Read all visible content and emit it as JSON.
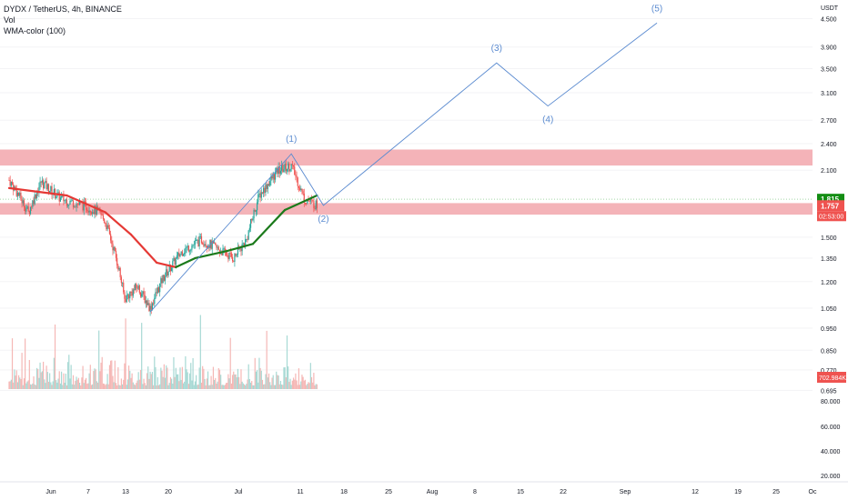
{
  "legend": {
    "symbol": "DYDX / TetherUS, 4h, BINANCE",
    "vol": "Vol",
    "wma": "WMA-color (100)"
  },
  "chart_data": {
    "type": "candlestick",
    "symbol": "DYDX / TetherUS",
    "interval": "4h",
    "exchange": "BINANCE",
    "price_axis_unit": "USDT",
    "price_scale": "log",
    "price_ticks": [
      "4.500",
      "3.900",
      "3.500",
      "3.100",
      "2.700",
      "2.400",
      "2.100",
      "1.500",
      "1.350",
      "1.200",
      "1.050",
      "0.950",
      "0.850",
      "0.770",
      "0.695"
    ],
    "volume_ticks": [
      "80.000",
      "60.000",
      "40.000",
      "20.000"
    ],
    "time_ticks": [
      "Jun",
      "7",
      "13",
      "20",
      "Jul",
      "11",
      "18",
      "25",
      "Aug",
      "8",
      "15",
      "22",
      "Sep",
      "12",
      "19",
      "25",
      "Oc"
    ],
    "price_labels": {
      "bid": "1.815",
      "last": "1.757",
      "countdown": "02:53:00",
      "volume": "702.984K"
    },
    "price_path": [
      {
        "date": "2022-05-27",
        "price": 2.0
      },
      {
        "date": "2022-05-30",
        "price": 1.7
      },
      {
        "date": "2022-06-01",
        "price": 1.98
      },
      {
        "date": "2022-06-04",
        "price": 1.82
      },
      {
        "date": "2022-06-08",
        "price": 1.75
      },
      {
        "date": "2022-06-10",
        "price": 1.7
      },
      {
        "date": "2022-06-11",
        "price": 1.62
      },
      {
        "date": "2022-06-13",
        "price": 1.3
      },
      {
        "date": "2022-06-14",
        "price": 1.1
      },
      {
        "date": "2022-06-16",
        "price": 1.17
      },
      {
        "date": "2022-06-18",
        "price": 1.05
      },
      {
        "date": "2022-06-20",
        "price": 1.22
      },
      {
        "date": "2022-06-23",
        "price": 1.4
      },
      {
        "date": "2022-06-26",
        "price": 1.48
      },
      {
        "date": "2022-06-29",
        "price": 1.4
      },
      {
        "date": "2022-07-01",
        "price": 1.35
      },
      {
        "date": "2022-07-03",
        "price": 1.48
      },
      {
        "date": "2022-07-05",
        "price": 1.85
      },
      {
        "date": "2022-07-08",
        "price": 2.1
      },
      {
        "date": "2022-07-10",
        "price": 2.15
      },
      {
        "date": "2022-07-12",
        "price": 1.82
      },
      {
        "date": "2022-07-14",
        "price": 1.76
      }
    ],
    "wma": [
      {
        "date": "2022-05-27",
        "price": 1.92,
        "color": "#e53935"
      },
      {
        "date": "2022-06-05",
        "price": 1.85,
        "color": "#e53935"
      },
      {
        "date": "2022-06-11",
        "price": 1.7,
        "color": "#e53935"
      },
      {
        "date": "2022-06-15",
        "price": 1.52,
        "color": "#e53935"
      },
      {
        "date": "2022-06-19",
        "price": 1.32,
        "color": "#e53935"
      },
      {
        "date": "2022-06-22",
        "price": 1.29,
        "color": "#e53935"
      },
      {
        "date": "2022-06-25",
        "price": 1.35,
        "color": "#1b7a1b"
      },
      {
        "date": "2022-06-30",
        "price": 1.4,
        "color": "#1b7a1b"
      },
      {
        "date": "2022-07-04",
        "price": 1.45,
        "color": "#1b7a1b"
      },
      {
        "date": "2022-07-09",
        "price": 1.72,
        "color": "#1b7a1b"
      },
      {
        "date": "2022-07-14",
        "price": 1.85,
        "color": "#1b7a1b"
      }
    ],
    "zones": [
      {
        "from": 2.15,
        "to": 2.33,
        "color": "#f2a6ac"
      },
      {
        "from": 1.68,
        "to": 1.78,
        "color": "#f2a6ac"
      }
    ],
    "wave_labels": [
      {
        "label": "(1)",
        "date": "2022-07-10",
        "price": 2.25
      },
      {
        "label": "(2)",
        "date": "2022-07-15",
        "price": 1.74
      },
      {
        "label": "(3)",
        "date": "2022-08-11",
        "price": 3.7
      },
      {
        "label": "(4)",
        "date": "2022-08-19",
        "price": 2.95
      },
      {
        "label": "(5)",
        "date": "2022-09-05",
        "price": 4.5
      }
    ],
    "projection_colour": "#5b8bd0",
    "colors": {
      "up": "#26a69a",
      "down": "#ef5350",
      "last_price": "#ef5350",
      "bid": "#138d13"
    }
  }
}
